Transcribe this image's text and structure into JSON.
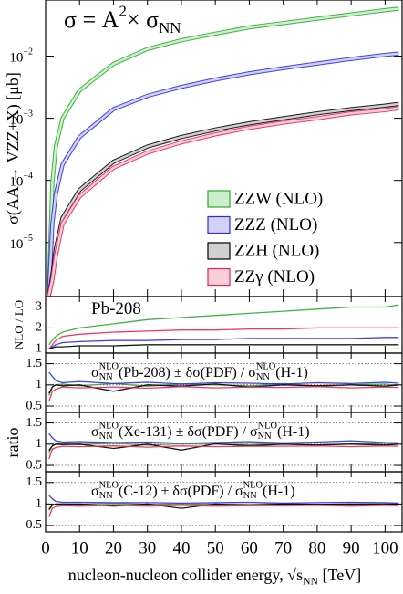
{
  "chart_data": [
    {
      "type": "line",
      "log_y": true,
      "title_parts": [
        {
          "text": "σ = A"
        },
        {
          "text": "2",
          "style": "sup"
        },
        {
          "text": "× σ"
        },
        {
          "text": "NN",
          "style": "sub"
        }
      ],
      "ylabel": "σ(AA → VZZ+X) [μb]",
      "x": [
        1,
        2,
        3,
        5,
        10,
        20,
        30,
        40,
        50,
        60,
        70,
        80,
        90,
        100,
        104
      ],
      "xlim": [
        0,
        105
      ],
      "xticks": [
        0,
        10,
        20,
        30,
        40,
        50,
        60,
        70,
        80,
        90,
        100
      ],
      "ylim": [
        1.35e-06,
        0.08
      ],
      "yticks": [
        {
          "value": 1e-05,
          "label": "10",
          "exponent": "−5"
        },
        {
          "value": 0.0001,
          "label": "10",
          "exponent": "−4"
        },
        {
          "value": 0.001,
          "label": "10",
          "exponent": "−3"
        },
        {
          "value": 0.01,
          "label": "10",
          "exponent": "−2"
        }
      ],
      "legend": "center right",
      "series": [
        {
          "name": "ZZW (NLO)",
          "color": "#2eaa2e",
          "band_color": "#cdeecd",
          "values": [
            2e-06,
            9e-05,
            0.00035,
            0.001,
            0.0028,
            0.0075,
            0.013,
            0.018,
            0.023,
            0.029,
            0.034,
            0.04,
            0.047,
            0.055,
            0.058
          ]
        },
        {
          "name": "ZZZ (NLO)",
          "color": "#2a2aee",
          "band_color": "#d2d2f8",
          "values": [
            1.5e-06,
            2e-05,
            6e-05,
            0.00018,
            0.0005,
            0.0014,
            0.0023,
            0.0032,
            0.0042,
            0.0053,
            0.0064,
            0.0076,
            0.009,
            0.0105,
            0.011
          ]
        },
        {
          "name": "ZZH (NLO)",
          "color": "#000000",
          "band_color": "#d0d0d0",
          "values": [
            1.4e-06,
            3e-06,
            8e-06,
            2.5e-05,
            7e-05,
            0.0002,
            0.00035,
            0.0005,
            0.00066,
            0.00083,
            0.001,
            0.0012,
            0.0014,
            0.0016,
            0.0017
          ]
        },
        {
          "name": "ZZγ (NLO)",
          "color": "#ee2255",
          "band_color": "#f8d0da",
          "values": [
            1.4e-06,
            2.5e-06,
            6e-06,
            2e-05,
            5.5e-05,
            0.00016,
            0.00028,
            0.00041,
            0.00055,
            0.0007,
            0.00085,
            0.001,
            0.0012,
            0.00135,
            0.00145
          ]
        }
      ]
    },
    {
      "type": "line",
      "label_parts": [
        {
          "text": "Pb-208"
        }
      ],
      "ylabel": "NLO / LO",
      "grid": true,
      "x": [
        1,
        2,
        3,
        5,
        10,
        20,
        30,
        40,
        50,
        60,
        70,
        80,
        90,
        100,
        104
      ],
      "xlim": [
        0,
        105
      ],
      "xticks": [
        0,
        10,
        20,
        30,
        40,
        50,
        60,
        70,
        80,
        90,
        100
      ],
      "ylim": [
        0.8,
        3.5
      ],
      "yticks": [
        1,
        2,
        3
      ],
      "series": [
        {
          "color": "#2eaa2e",
          "values": [
            1.2,
            1.4,
            1.6,
            1.8,
            2.0,
            2.2,
            2.4,
            2.5,
            2.6,
            2.7,
            2.8,
            2.9,
            3.0,
            3.0,
            3.1
          ]
        },
        {
          "color": "#2a2aee",
          "values": [
            1.0,
            1.1,
            1.2,
            1.3,
            1.35,
            1.4,
            1.4,
            1.45,
            1.45,
            1.5,
            1.5,
            1.5,
            1.5,
            1.55,
            1.55
          ]
        },
        {
          "color": "#000000",
          "values": [
            1.0,
            1.05,
            1.1,
            1.1,
            1.15,
            1.15,
            1.2,
            1.2,
            1.2,
            1.2,
            1.2,
            1.2,
            1.2,
            1.2,
            1.2
          ]
        },
        {
          "color": "#ee2255",
          "values": [
            1.0,
            1.2,
            1.4,
            1.6,
            1.7,
            1.8,
            1.85,
            1.9,
            1.9,
            1.95,
            1.95,
            2.0,
            2.0,
            2.0,
            2.0
          ]
        }
      ]
    },
    {
      "type": "line",
      "grid": true,
      "ylabel": "ratio",
      "label_parts": [
        {
          "text": "σ"
        },
        {
          "text": "NN",
          "style": "subsup"
        },
        {
          "text": "NLO",
          "style": "supover"
        },
        {
          "text": "(Pb-208) ± δσ(PDF) / σ"
        },
        {
          "text": "NN",
          "style": "subsup"
        },
        {
          "text": "NLO",
          "style": "supover"
        },
        {
          "text": "(H-1)"
        }
      ],
      "x": [
        1,
        2,
        3,
        5,
        10,
        20,
        30,
        40,
        50,
        60,
        70,
        80,
        90,
        100,
        104
      ],
      "xlim": [
        0,
        105
      ],
      "xticks": [
        0,
        10,
        20,
        30,
        40,
        50,
        60,
        70,
        80,
        90,
        100
      ],
      "ylim": [
        0.35,
        1.75
      ],
      "yticks": [
        0.5,
        1,
        1.5
      ],
      "series": [
        {
          "color": "#2eaa2e",
          "values": [
            0.75,
            0.95,
            1.0,
            1.02,
            0.98,
            1.03,
            0.97,
            1.02,
            1.0,
            0.98,
            1.03,
            0.97,
            1.0,
            1.02,
            0.99
          ]
        },
        {
          "color": "#2a2aee",
          "values": [
            1.3,
            1.2,
            1.1,
            1.05,
            1.08,
            1.03,
            1.06,
            1.02,
            1.05,
            1.04,
            1.02,
            1.05,
            1.03,
            1.06,
            1.04
          ]
        },
        {
          "color": "#000000",
          "values": [
            0.8,
            0.95,
            1.0,
            0.98,
            1.0,
            0.85,
            1.0,
            0.97,
            1.02,
            0.95,
            1.0,
            0.98,
            1.0,
            0.97,
            1.0
          ]
        },
        {
          "color": "#ee2255",
          "values": [
            0.6,
            0.85,
            0.9,
            0.95,
            0.93,
            0.95,
            0.92,
            0.96,
            0.93,
            0.95,
            0.94,
            0.96,
            0.93,
            0.95,
            0.94
          ]
        }
      ]
    },
    {
      "type": "line",
      "grid": true,
      "label_parts": [
        {
          "text": "σ"
        },
        {
          "text": "NN",
          "style": "subsup"
        },
        {
          "text": "NLO",
          "style": "supover"
        },
        {
          "text": "(Xe-131) ± δσ(PDF) / σ"
        },
        {
          "text": "NN",
          "style": "subsup"
        },
        {
          "text": "NLO",
          "style": "supover"
        },
        {
          "text": "(H-1)"
        }
      ],
      "x": [
        1,
        2,
        3,
        5,
        10,
        20,
        30,
        40,
        50,
        60,
        70,
        80,
        90,
        100,
        104
      ],
      "xlim": [
        0,
        105
      ],
      "xticks": [
        0,
        10,
        20,
        30,
        40,
        50,
        60,
        70,
        80,
        90,
        100
      ],
      "ylim": [
        0.35,
        1.75
      ],
      "yticks": [
        0.5,
        1,
        1.5
      ],
      "series": [
        {
          "color": "#2eaa2e",
          "values": [
            0.8,
            0.96,
            1.0,
            1.01,
            0.99,
            1.02,
            0.98,
            1.01,
            1.0,
            0.99,
            1.02,
            0.98,
            1.01,
            1.02,
            1.0
          ]
        },
        {
          "color": "#2a2aee",
          "values": [
            1.25,
            1.15,
            1.08,
            1.05,
            1.06,
            1.04,
            1.05,
            1.02,
            1.04,
            1.06,
            1.03,
            1.05,
            1.08,
            1.04,
            1.03
          ]
        },
        {
          "color": "#000000",
          "values": [
            0.85,
            0.96,
            1.0,
            0.99,
            1.0,
            0.9,
            1.0,
            0.86,
            1.01,
            0.96,
            1.0,
            0.98,
            1.0,
            0.98,
            1.0
          ]
        },
        {
          "color": "#ee2255",
          "values": [
            0.65,
            0.88,
            0.92,
            0.95,
            0.94,
            0.96,
            0.93,
            0.96,
            0.94,
            0.95,
            0.95,
            0.96,
            0.94,
            0.96,
            0.95
          ]
        }
      ]
    },
    {
      "type": "line",
      "grid": true,
      "label_parts": [
        {
          "text": "σ"
        },
        {
          "text": "NN",
          "style": "subsup"
        },
        {
          "text": "NLO",
          "style": "supover"
        },
        {
          "text": "(C-12) ± δσ(PDF) / σ"
        },
        {
          "text": "NN",
          "style": "subsup"
        },
        {
          "text": "NLO",
          "style": "supover"
        },
        {
          "text": "(H-1)"
        }
      ],
      "xlabel_parts": [
        {
          "text": "nucleon-nucleon collider energy, √s"
        },
        {
          "text": "NN",
          "style": "sub"
        },
        {
          "text": " [TeV]"
        }
      ],
      "x": [
        1,
        2,
        3,
        5,
        10,
        20,
        30,
        40,
        50,
        60,
        70,
        80,
        90,
        100,
        104
      ],
      "xlim": [
        0,
        105
      ],
      "xticks": [
        0,
        10,
        20,
        30,
        40,
        50,
        60,
        70,
        80,
        90,
        100
      ],
      "ylim": [
        0.35,
        1.75
      ],
      "yticks": [
        0.5,
        1,
        1.5
      ],
      "series": [
        {
          "color": "#2eaa2e",
          "values": [
            0.85,
            0.97,
            1.0,
            1.01,
            1.0,
            1.01,
            0.99,
            1.0,
            1.0,
            0.99,
            1.01,
            0.99,
            1.0,
            1.01,
            1.0
          ]
        },
        {
          "color": "#2a2aee",
          "values": [
            1.2,
            1.12,
            1.06,
            1.04,
            1.04,
            1.03,
            1.03,
            1.02,
            1.03,
            1.04,
            1.02,
            1.03,
            1.04,
            1.03,
            1.02
          ]
        },
        {
          "color": "#000000",
          "values": [
            0.88,
            0.97,
            1.0,
            0.99,
            1.0,
            0.95,
            1.0,
            0.9,
            1.0,
            0.97,
            1.0,
            0.99,
            1.0,
            0.99,
            1.0
          ]
        },
        {
          "color": "#ee2255",
          "values": [
            0.7,
            0.9,
            0.94,
            0.96,
            0.95,
            0.97,
            0.95,
            0.97,
            0.95,
            0.96,
            0.96,
            0.97,
            0.95,
            0.97,
            0.96
          ]
        }
      ]
    }
  ]
}
